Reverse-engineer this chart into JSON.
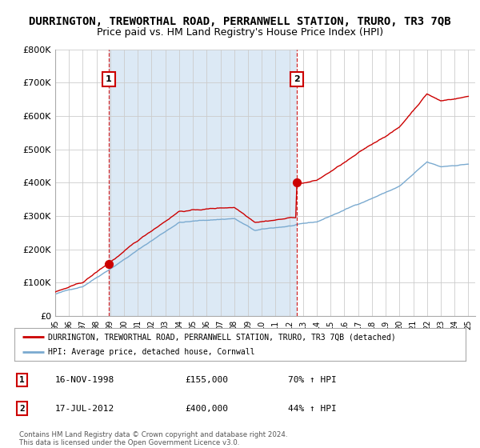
{
  "title": "DURRINGTON, TREWORTHAL ROAD, PERRANWELL STATION, TRURO, TR3 7QB",
  "subtitle": "Price paid vs. HM Land Registry's House Price Index (HPI)",
  "ylim": [
    0,
    800000
  ],
  "yticks": [
    0,
    100000,
    200000,
    300000,
    400000,
    500000,
    600000,
    700000,
    800000
  ],
  "ytick_labels": [
    "£0",
    "£100K",
    "£200K",
    "£300K",
    "£400K",
    "£500K",
    "£600K",
    "£700K",
    "£800K"
  ],
  "sale1_year": 1998.88,
  "sale1_price": 155000,
  "sale1_label": "1",
  "sale1_date": "16-NOV-1998",
  "sale1_pct": "70% ↑ HPI",
  "sale2_year": 2012.54,
  "sale2_price": 400000,
  "sale2_label": "2",
  "sale2_date": "17-JUL-2012",
  "sale2_pct": "44% ↑ HPI",
  "property_line_color": "#cc0000",
  "hpi_line_color": "#7aaad0",
  "shade_color": "#dce9f5",
  "grid_color": "#cccccc",
  "background_color": "#ffffff",
  "legend_property": "DURRINGTON, TREWORTHAL ROAD, PERRANWELL STATION, TRURO, TR3 7QB (detached)",
  "legend_hpi": "HPI: Average price, detached house, Cornwall",
  "copyright_text": "Contains HM Land Registry data © Crown copyright and database right 2024.\nThis data is licensed under the Open Government Licence v3.0.",
  "title_fontsize": 10,
  "subtitle_fontsize": 9,
  "xlim_start": 1995,
  "xlim_end": 2025.5
}
